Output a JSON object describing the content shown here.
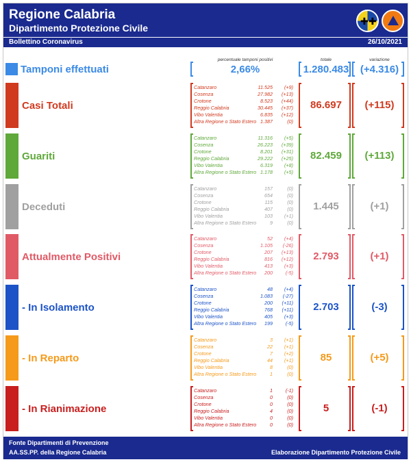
{
  "header": {
    "title": "Regione Calabria",
    "subtitle": "Dipartimento Protezione Civile",
    "bulletin": "Bollettino Coronavirus",
    "date": "26/10/2021",
    "colors": {
      "navy": "#1a2a8f"
    }
  },
  "columns": {
    "perc_header": "percentuale tamponi positivi",
    "total_header": "totale",
    "var_header": "variazione"
  },
  "tamponi": {
    "label": "Tamponi effettuati",
    "percent": "2,66%",
    "total": "1.280.483",
    "variation": "(+4.316)",
    "color": "#3b8ae6"
  },
  "sections": [
    {
      "id": "casi",
      "label": "Casi Totali",
      "color": "#d03a1f",
      "total": "86.697",
      "variation": "(+115)",
      "rows": [
        {
          "name": "Catanzaro",
          "value": "11.525",
          "delta": "(+9)"
        },
        {
          "name": "Cosenza",
          "value": "27.982",
          "delta": "(+13)"
        },
        {
          "name": "Crotone",
          "value": "8.523",
          "delta": "(+44)"
        },
        {
          "name": "Reggio Calabria",
          "value": "30.445",
          "delta": "(+37)"
        },
        {
          "name": "Vibo Valentia",
          "value": "6.835",
          "delta": "(+12)"
        },
        {
          "name": "Altra Regione o Stato Estero",
          "value": "1.387",
          "delta": "(0)"
        }
      ]
    },
    {
      "id": "guariti",
      "label": "Guariti",
      "color": "#5fa83a",
      "total": "82.459",
      "variation": "(+113)",
      "rows": [
        {
          "name": "Catanzaro",
          "value": "11.316",
          "delta": "(+5)"
        },
        {
          "name": "Cosenza",
          "value": "26.223",
          "delta": "(+39)"
        },
        {
          "name": "Crotone",
          "value": "8.201",
          "delta": "(+31)"
        },
        {
          "name": "Reggio Calabria",
          "value": "29.222",
          "delta": "(+25)"
        },
        {
          "name": "Vibo Valentia",
          "value": "6.319",
          "delta": "(+8)"
        },
        {
          "name": "Altra Regione o Stato Estero",
          "value": "1.178",
          "delta": "(+5)"
        }
      ]
    },
    {
      "id": "deceduti",
      "label": "Deceduti",
      "color": "#a0a0a0",
      "total": "1.445",
      "variation": "(+1)",
      "rows": [
        {
          "name": "Catanzaro",
          "value": "157",
          "delta": "(0)"
        },
        {
          "name": "Cosenza",
          "value": "654",
          "delta": "(0)"
        },
        {
          "name": "Crotone",
          "value": "115",
          "delta": "(0)"
        },
        {
          "name": "Reggio Calabria",
          "value": "407",
          "delta": "(0)"
        },
        {
          "name": "Vibo Valentia",
          "value": "103",
          "delta": "(+1)"
        },
        {
          "name": "Altra Regione o Stato Estero",
          "value": "9",
          "delta": "(0)"
        }
      ]
    },
    {
      "id": "positivi",
      "label": "Attualmente Positivi",
      "color": "#e05a66",
      "total": "2.793",
      "variation": "(+1)",
      "rows": [
        {
          "name": "Catanzaro",
          "value": "52",
          "delta": "(+4)"
        },
        {
          "name": "Cosenza",
          "value": "1.105",
          "delta": "(-26)"
        },
        {
          "name": "Crotone",
          "value": "207",
          "delta": "(+13)"
        },
        {
          "name": "Reggio Calabria",
          "value": "816",
          "delta": "(+12)"
        },
        {
          "name": "Vibo Valentia",
          "value": "413",
          "delta": "(+3)"
        },
        {
          "name": "Altra Regione o Stato Estero",
          "value": "200",
          "delta": "(-5)"
        }
      ]
    },
    {
      "id": "isolamento",
      "label": "- In Isolamento",
      "color": "#1c53c6",
      "total": "2.703",
      "variation": "(-3)",
      "rows": [
        {
          "name": "Catanzaro",
          "value": "48",
          "delta": "(+4)"
        },
        {
          "name": "Cosenza",
          "value": "1.083",
          "delta": "(-27)"
        },
        {
          "name": "Crotone",
          "value": "200",
          "delta": "(+11)"
        },
        {
          "name": "Reggio Calabria",
          "value": "768",
          "delta": "(+11)"
        },
        {
          "name": "Vibo Valentia",
          "value": "405",
          "delta": "(+3)"
        },
        {
          "name": "Altra Regione o Stato Estero",
          "value": "199",
          "delta": "(-5)"
        }
      ]
    },
    {
      "id": "reparto",
      "label": "- In Reparto",
      "color": "#f59a1a",
      "total": "85",
      "variation": "(+5)",
      "rows": [
        {
          "name": "Catanzaro",
          "value": "3",
          "delta": "(+1)"
        },
        {
          "name": "Cosenza",
          "value": "22",
          "delita": "",
          "delta": "(+1)"
        },
        {
          "name": "Crotone",
          "value": "7",
          "delta": "(+2)"
        },
        {
          "name": "Reggio Calabria",
          "value": "44",
          "delta": "(+1)"
        },
        {
          "name": "Vibo Valentia",
          "value": "8",
          "delta": "(0)"
        },
        {
          "name": "Altra Regione o Stato Estero",
          "value": "1",
          "delta": "(0)"
        }
      ]
    },
    {
      "id": "rianimazione",
      "label": "- In Rianimazione",
      "color": "#c81e1e",
      "total": "5",
      "variation": "(-1)",
      "rows": [
        {
          "name": "Catanzaro",
          "value": "1",
          "delta": "(-1)"
        },
        {
          "name": "Cosenza",
          "value": "0",
          "delta": "(0)"
        },
        {
          "name": "Crotone",
          "value": "0",
          "delta": "(0)"
        },
        {
          "name": "Reggio Calabria",
          "value": "4",
          "delta": "(0)"
        },
        {
          "name": "Vibo Valentia",
          "value": "0",
          "delta": "(0)"
        },
        {
          "name": "Altra Regione o Stato Estero",
          "value": "0",
          "delta": "(0)"
        }
      ]
    }
  ],
  "footer": {
    "source_line1": "Fonte Dipartimenti di Prevenzione",
    "source_line2": "AA.SS.PP.  della Regione Calabria",
    "credit": "Elaborazione Dipartimento Protezione Civile"
  }
}
